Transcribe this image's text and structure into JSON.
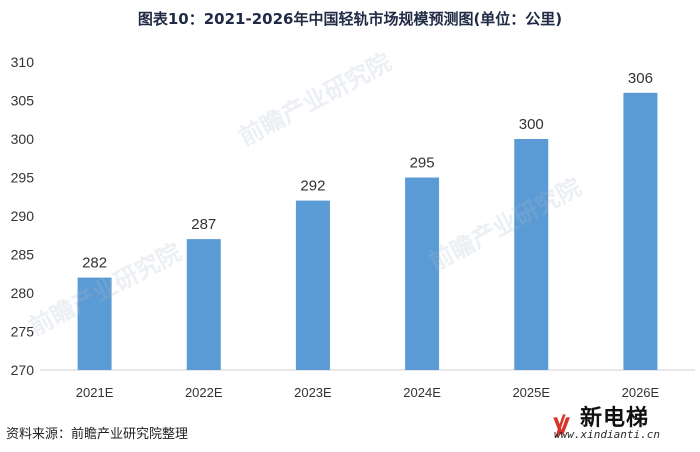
{
  "chart_data": {
    "type": "bar",
    "title": "图表10：2021-2026年中国轻轨市场规模预测图(单位：公里)",
    "categories": [
      "2021E",
      "2022E",
      "2023E",
      "2024E",
      "2025E",
      "2026E"
    ],
    "values": [
      282,
      287,
      292,
      295,
      300,
      306
    ],
    "ylim": [
      270,
      310
    ],
    "yticks": [
      270,
      275,
      280,
      285,
      290,
      295,
      300,
      305,
      310
    ],
    "grid": false,
    "bar_color": "#5b9bd5"
  },
  "source": "资料来源：前瞻产业研究院整理",
  "watermark": "前瞻产业研究院",
  "logo": {
    "name": "新电梯",
    "url": "www.xindianti.cn"
  }
}
